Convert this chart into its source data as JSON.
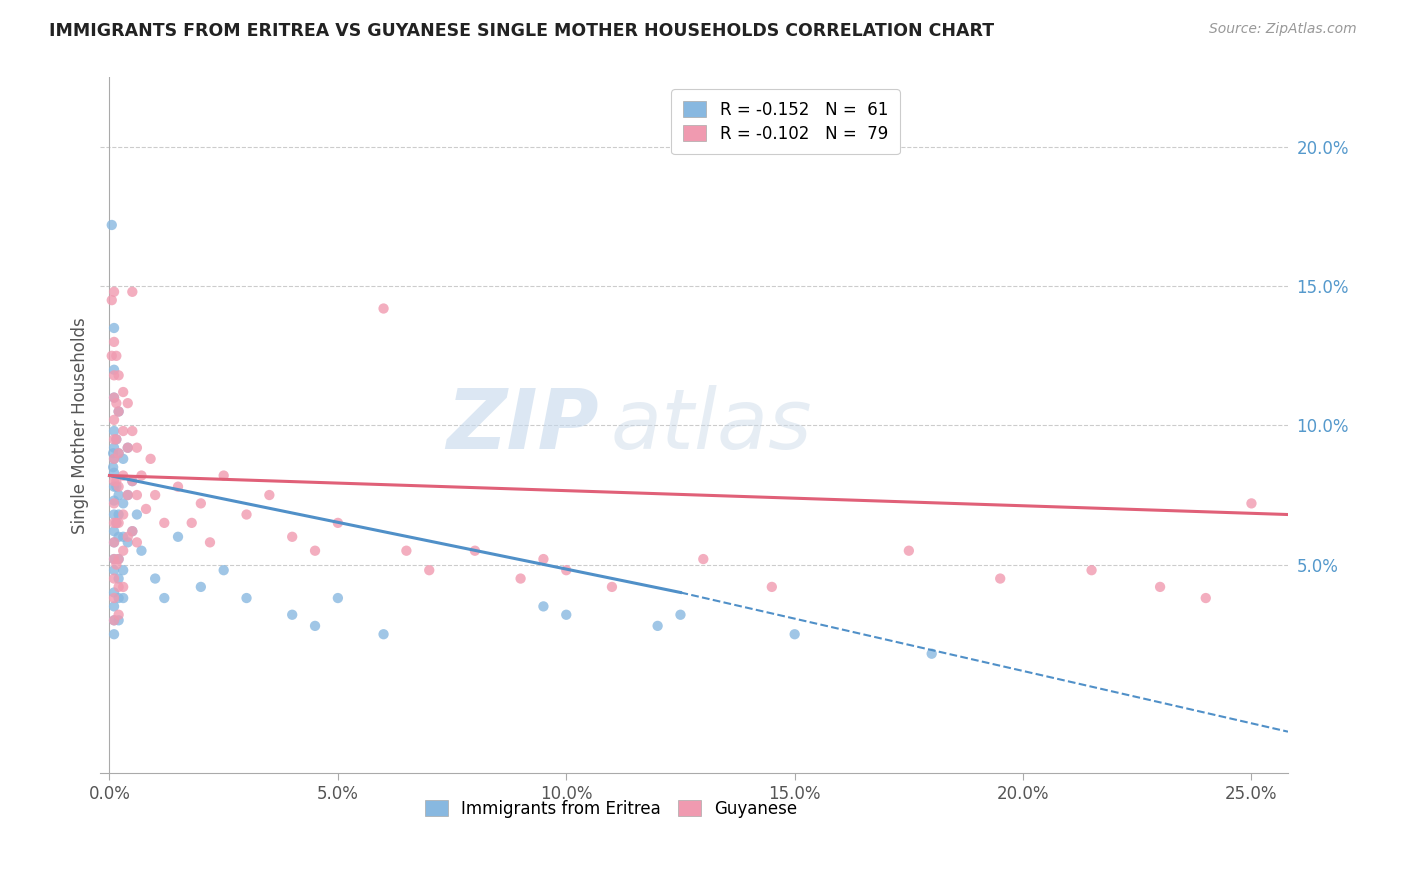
{
  "title": "IMMIGRANTS FROM ERITREA VS GUYANESE SINGLE MOTHER HOUSEHOLDS CORRELATION CHART",
  "source": "Source: ZipAtlas.com",
  "ylabel": "Single Mother Households",
  "legend_entries": [
    {
      "label": "R = -0.152   N =  61",
      "color": "#a8c8e8"
    },
    {
      "label": "R = -0.102   N =  79",
      "color": "#f4a8b8"
    }
  ],
  "watermark_text": "ZIPatlas",
  "blue_color": "#88b8e0",
  "pink_color": "#f09ab0",
  "blue_line_color": "#5090c8",
  "pink_line_color": "#e06078",
  "blue_scatter": [
    [
      0.0005,
      0.172
    ],
    [
      0.0008,
      0.09
    ],
    [
      0.0008,
      0.085
    ],
    [
      0.001,
      0.135
    ],
    [
      0.001,
      0.12
    ],
    [
      0.001,
      0.11
    ],
    [
      0.001,
      0.098
    ],
    [
      0.001,
      0.092
    ],
    [
      0.001,
      0.088
    ],
    [
      0.001,
      0.083
    ],
    [
      0.001,
      0.078
    ],
    [
      0.001,
      0.073
    ],
    [
      0.001,
      0.068
    ],
    [
      0.001,
      0.062
    ],
    [
      0.001,
      0.058
    ],
    [
      0.001,
      0.052
    ],
    [
      0.001,
      0.048
    ],
    [
      0.001,
      0.04
    ],
    [
      0.001,
      0.035
    ],
    [
      0.001,
      0.03
    ],
    [
      0.001,
      0.025
    ],
    [
      0.0015,
      0.095
    ],
    [
      0.0015,
      0.078
    ],
    [
      0.0015,
      0.065
    ],
    [
      0.002,
      0.105
    ],
    [
      0.002,
      0.09
    ],
    [
      0.002,
      0.075
    ],
    [
      0.002,
      0.068
    ],
    [
      0.002,
      0.06
    ],
    [
      0.002,
      0.052
    ],
    [
      0.002,
      0.045
    ],
    [
      0.002,
      0.038
    ],
    [
      0.002,
      0.03
    ],
    [
      0.003,
      0.088
    ],
    [
      0.003,
      0.072
    ],
    [
      0.003,
      0.06
    ],
    [
      0.003,
      0.048
    ],
    [
      0.003,
      0.038
    ],
    [
      0.004,
      0.092
    ],
    [
      0.004,
      0.075
    ],
    [
      0.004,
      0.058
    ],
    [
      0.005,
      0.08
    ],
    [
      0.005,
      0.062
    ],
    [
      0.006,
      0.068
    ],
    [
      0.007,
      0.055
    ],
    [
      0.01,
      0.045
    ],
    [
      0.012,
      0.038
    ],
    [
      0.015,
      0.06
    ],
    [
      0.02,
      0.042
    ],
    [
      0.025,
      0.048
    ],
    [
      0.03,
      0.038
    ],
    [
      0.04,
      0.032
    ],
    [
      0.045,
      0.028
    ],
    [
      0.05,
      0.038
    ],
    [
      0.06,
      0.025
    ],
    [
      0.095,
      0.035
    ],
    [
      0.1,
      0.032
    ],
    [
      0.12,
      0.028
    ],
    [
      0.125,
      0.032
    ],
    [
      0.15,
      0.025
    ],
    [
      0.18,
      0.018
    ]
  ],
  "pink_scatter": [
    [
      0.0005,
      0.145
    ],
    [
      0.0005,
      0.125
    ],
    [
      0.001,
      0.148
    ],
    [
      0.001,
      0.13
    ],
    [
      0.001,
      0.118
    ],
    [
      0.001,
      0.11
    ],
    [
      0.001,
      0.102
    ],
    [
      0.001,
      0.095
    ],
    [
      0.001,
      0.088
    ],
    [
      0.001,
      0.08
    ],
    [
      0.001,
      0.072
    ],
    [
      0.001,
      0.065
    ],
    [
      0.001,
      0.058
    ],
    [
      0.001,
      0.052
    ],
    [
      0.001,
      0.045
    ],
    [
      0.001,
      0.038
    ],
    [
      0.001,
      0.03
    ],
    [
      0.0015,
      0.125
    ],
    [
      0.0015,
      0.108
    ],
    [
      0.0015,
      0.095
    ],
    [
      0.0015,
      0.08
    ],
    [
      0.0015,
      0.065
    ],
    [
      0.0015,
      0.05
    ],
    [
      0.002,
      0.118
    ],
    [
      0.002,
      0.105
    ],
    [
      0.002,
      0.09
    ],
    [
      0.002,
      0.078
    ],
    [
      0.002,
      0.065
    ],
    [
      0.002,
      0.052
    ],
    [
      0.002,
      0.042
    ],
    [
      0.002,
      0.032
    ],
    [
      0.003,
      0.112
    ],
    [
      0.003,
      0.098
    ],
    [
      0.003,
      0.082
    ],
    [
      0.003,
      0.068
    ],
    [
      0.003,
      0.055
    ],
    [
      0.003,
      0.042
    ],
    [
      0.004,
      0.108
    ],
    [
      0.004,
      0.092
    ],
    [
      0.004,
      0.075
    ],
    [
      0.004,
      0.06
    ],
    [
      0.005,
      0.148
    ],
    [
      0.005,
      0.098
    ],
    [
      0.005,
      0.08
    ],
    [
      0.005,
      0.062
    ],
    [
      0.006,
      0.092
    ],
    [
      0.006,
      0.075
    ],
    [
      0.006,
      0.058
    ],
    [
      0.007,
      0.082
    ],
    [
      0.008,
      0.07
    ],
    [
      0.009,
      0.088
    ],
    [
      0.01,
      0.075
    ],
    [
      0.012,
      0.065
    ],
    [
      0.015,
      0.078
    ],
    [
      0.018,
      0.065
    ],
    [
      0.02,
      0.072
    ],
    [
      0.022,
      0.058
    ],
    [
      0.025,
      0.082
    ],
    [
      0.03,
      0.068
    ],
    [
      0.035,
      0.075
    ],
    [
      0.04,
      0.06
    ],
    [
      0.045,
      0.055
    ],
    [
      0.05,
      0.065
    ],
    [
      0.06,
      0.142
    ],
    [
      0.065,
      0.055
    ],
    [
      0.07,
      0.048
    ],
    [
      0.08,
      0.055
    ],
    [
      0.09,
      0.045
    ],
    [
      0.095,
      0.052
    ],
    [
      0.1,
      0.048
    ],
    [
      0.11,
      0.042
    ],
    [
      0.13,
      0.052
    ],
    [
      0.145,
      0.042
    ],
    [
      0.175,
      0.055
    ],
    [
      0.195,
      0.045
    ],
    [
      0.215,
      0.048
    ],
    [
      0.23,
      0.042
    ],
    [
      0.24,
      0.038
    ],
    [
      0.25,
      0.072
    ]
  ],
  "blue_line": {
    "x": [
      0.0,
      0.125
    ],
    "y": [
      0.082,
      0.04
    ]
  },
  "blue_dashed": {
    "x": [
      0.125,
      0.258
    ],
    "y": [
      0.04,
      -0.01
    ]
  },
  "pink_line": {
    "x": [
      0.0,
      0.258
    ],
    "y": [
      0.082,
      0.068
    ]
  },
  "xlim": [
    -0.002,
    0.258
  ],
  "ylim": [
    -0.025,
    0.225
  ],
  "xticks": [
    0.0,
    0.05,
    0.1,
    0.15,
    0.2,
    0.25
  ],
  "xticklabels": [
    "0.0%",
    "5.0%",
    "10.0%",
    "15.0%",
    "20.0%",
    "25.0%"
  ],
  "yticks_right": [
    0.05,
    0.1,
    0.15,
    0.2
  ],
  "yticklabels_right": [
    "5.0%",
    "10.0%",
    "15.0%",
    "20.0%"
  ]
}
